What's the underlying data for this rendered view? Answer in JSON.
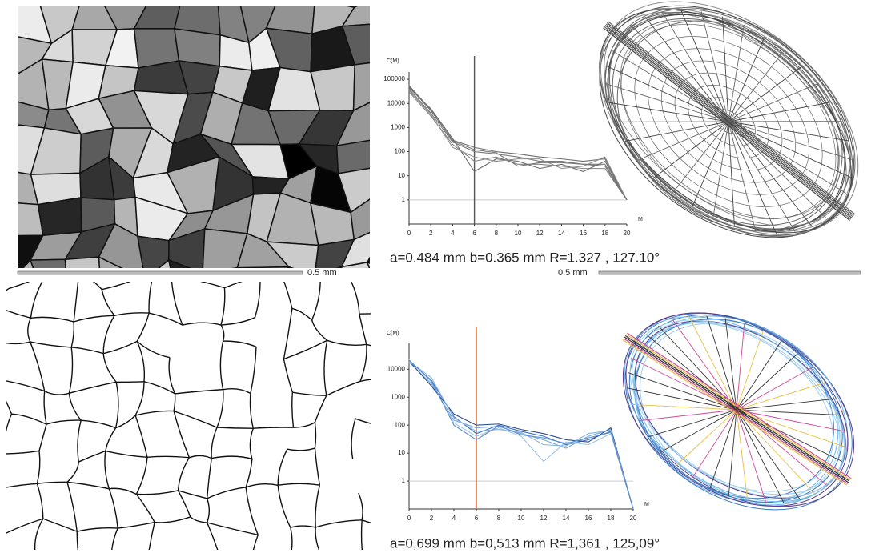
{
  "chart_data": [
    {
      "type": "line",
      "y_label": "C(M)",
      "x_label": "M",
      "yscale": "log",
      "x": [
        0,
        2,
        4,
        6,
        8,
        10,
        12,
        14,
        16,
        18,
        20
      ],
      "xlim": [
        0,
        20
      ],
      "xticks": [
        0,
        2,
        4,
        6,
        8,
        10,
        12,
        14,
        16,
        18,
        20
      ],
      "ylim": [
        0.1,
        200000
      ],
      "yticks": [
        1,
        10,
        100,
        1000,
        10000,
        100000
      ],
      "hline": 1,
      "vline": {
        "value": 6,
        "color": "#555555"
      },
      "series": [
        {
          "color": "#6e6e6e",
          "values": [
            50000,
            5000,
            300,
            150,
            100,
            80,
            60,
            50,
            40,
            50,
            1
          ]
        },
        {
          "color": "#7a7a7a",
          "values": [
            40000,
            4000,
            250,
            100,
            80,
            60,
            40,
            40,
            30,
            30,
            1
          ]
        },
        {
          "color": "#858585",
          "values": [
            30000,
            3000,
            200,
            40,
            60,
            30,
            30,
            25,
            20,
            20,
            1
          ]
        },
        {
          "color": "#6a6a6a",
          "values": [
            45000,
            6000,
            350,
            15,
            50,
            40,
            20,
            30,
            15,
            40,
            1
          ]
        },
        {
          "color": "#8f8f8f",
          "values": [
            35000,
            3500,
            150,
            60,
            40,
            50,
            50,
            20,
            25,
            60,
            1
          ]
        },
        {
          "color": "#767676",
          "values": [
            55000,
            5500,
            280,
            120,
            90,
            25,
            35,
            35,
            30,
            25,
            1
          ]
        }
      ],
      "caption": "a=0.484 mm  b=0.365 mm  R=1.327 , 127.10°"
    },
    {
      "type": "line",
      "y_label": "C(M)",
      "x_label": "M",
      "yscale": "log",
      "x": [
        0,
        2,
        4,
        6,
        8,
        10,
        12,
        14,
        16,
        18,
        20
      ],
      "xlim": [
        0,
        20
      ],
      "xticks": [
        0,
        2,
        4,
        6,
        8,
        10,
        12,
        14,
        16,
        18,
        20
      ],
      "ylim": [
        0.1,
        90000
      ],
      "yticks": [
        1,
        10,
        100,
        1000,
        10000
      ],
      "hline": 1,
      "vline": {
        "value": 6,
        "color": "#e8622a"
      },
      "series": [
        {
          "color": "#3a6fc4",
          "values": [
            20000,
            4000,
            200,
            50,
            100,
            60,
            40,
            20,
            30,
            60,
            0.1
          ]
        },
        {
          "color": "#6fa8dc",
          "values": [
            18000,
            3000,
            150,
            80,
            90,
            50,
            30,
            15,
            40,
            70,
            0.1
          ]
        },
        {
          "color": "#9ec5e8",
          "values": [
            22000,
            3500,
            120,
            40,
            80,
            40,
            5,
            25,
            20,
            50,
            0.1
          ]
        },
        {
          "color": "#2d4f8f",
          "values": [
            20000,
            2500,
            250,
            100,
            110,
            70,
            50,
            30,
            25,
            80,
            0.1
          ]
        },
        {
          "color": "#8ab4e0",
          "values": [
            19000,
            5000,
            180,
            60,
            70,
            55,
            20,
            18,
            50,
            65,
            0.1
          ]
        },
        {
          "color": "#5b8ed0",
          "values": [
            21000,
            3800,
            100,
            30,
            95,
            45,
            35,
            22,
            35,
            55,
            0.1
          ]
        }
      ],
      "caption": "a=0,699 mm  b=0,513 mm  R=1,361 , 125,09°"
    }
  ],
  "scale_bars": [
    {
      "label": "0.5 mm"
    },
    {
      "label": "0.5 mm"
    }
  ]
}
